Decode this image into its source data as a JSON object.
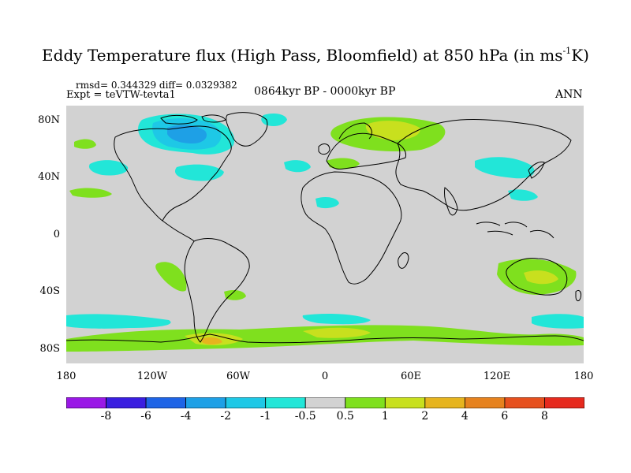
{
  "header": {
    "title_main": "Eddy Temperature flux (High Pass, Bloomfield) at 850 hPa (in ms",
    "title_sup": "-1",
    "title_end": "K)",
    "stats": "rmsd= 0.344329 diff= 0.0329382",
    "expt": "Expt = teVTW-tevta1",
    "period": "0864kyr BP - 0000kyr BP",
    "season": "ANN"
  },
  "axes": {
    "lat_labels": [
      "80N",
      "40N",
      "0",
      "40S",
      "80S"
    ],
    "lon_labels": [
      "180",
      "120W",
      "60W",
      "0",
      "60E",
      "120E",
      "180"
    ]
  },
  "colorbar": {
    "labels": [
      "-8",
      "-6",
      "-4",
      "-2",
      "-1",
      "-0.5",
      "0.5",
      "1",
      "2",
      "4",
      "6",
      "8"
    ],
    "colors": [
      "#9a18e6",
      "#3a1ee0",
      "#1e64e6",
      "#1ea0e6",
      "#1ec8e6",
      "#22e6d8",
      "#d2d2d2",
      "#7fe01e",
      "#c8e01e",
      "#e6b41e",
      "#e6821e",
      "#e6501e",
      "#e62a1e"
    ]
  },
  "map": {
    "background_color": "#d2d2d2",
    "coastline_color": "#000000"
  }
}
